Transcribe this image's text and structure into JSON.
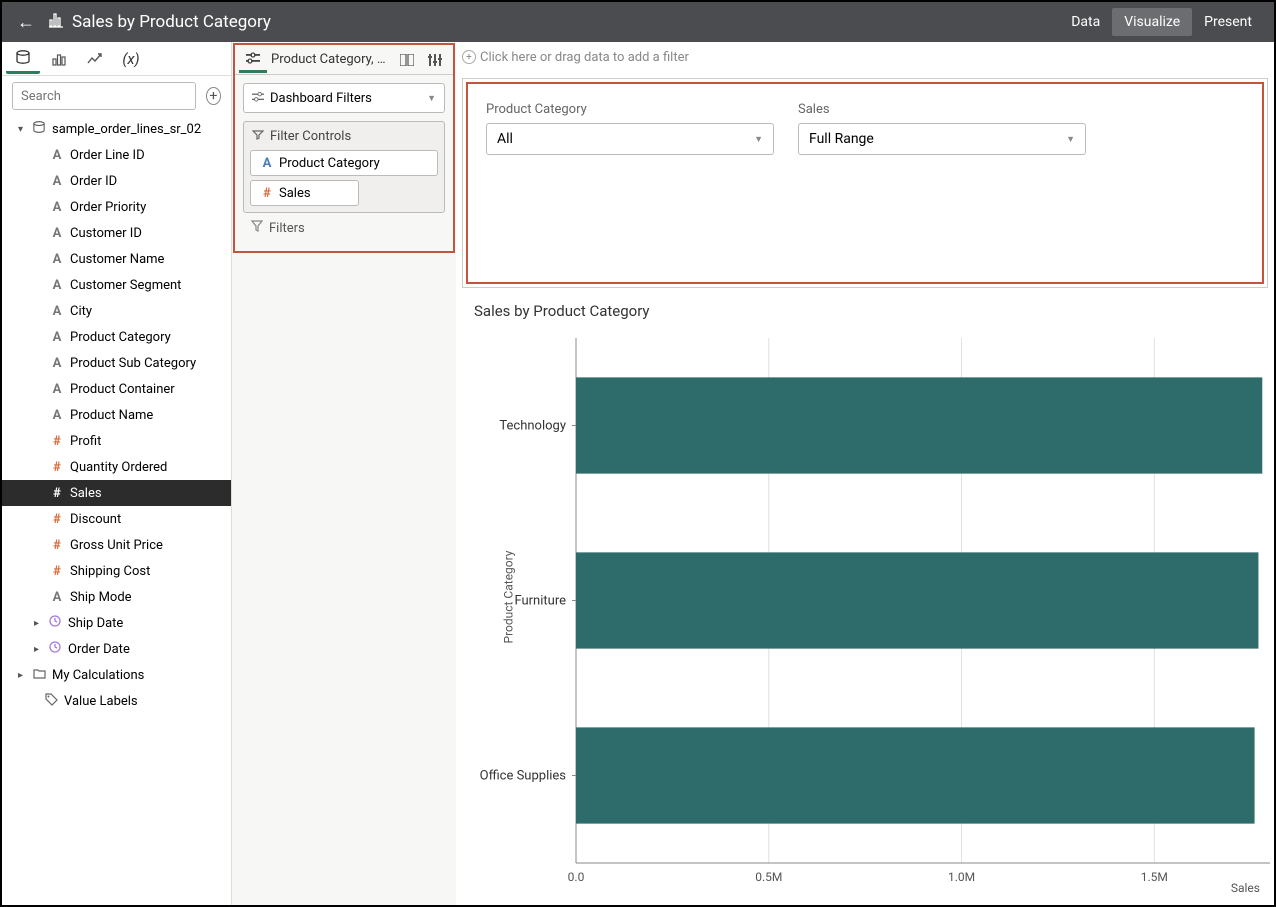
{
  "header": {
    "title": "Sales by Product Category",
    "nav": {
      "data": "Data",
      "visualize": "Visualize",
      "present": "Present",
      "active": "visualize"
    }
  },
  "sidebar": {
    "search_placeholder": "Search",
    "dataset": "sample_order_lines_sr_02",
    "fields": [
      {
        "label": "Order Line ID",
        "type": "text"
      },
      {
        "label": "Order ID",
        "type": "text"
      },
      {
        "label": "Order Priority",
        "type": "text"
      },
      {
        "label": "Customer ID",
        "type": "text"
      },
      {
        "label": "Customer Name",
        "type": "text"
      },
      {
        "label": "Customer Segment",
        "type": "text"
      },
      {
        "label": "City",
        "type": "text"
      },
      {
        "label": "Product Category",
        "type": "text"
      },
      {
        "label": "Product Sub Category",
        "type": "text"
      },
      {
        "label": "Product Container",
        "type": "text"
      },
      {
        "label": "Product Name",
        "type": "text"
      },
      {
        "label": "Profit",
        "type": "num"
      },
      {
        "label": "Quantity Ordered",
        "type": "num"
      },
      {
        "label": "Sales",
        "type": "num",
        "selected": true
      },
      {
        "label": "Discount",
        "type": "num"
      },
      {
        "label": "Gross Unit Price",
        "type": "num"
      },
      {
        "label": "Shipping Cost",
        "type": "num"
      },
      {
        "label": "Ship Mode",
        "type": "text"
      },
      {
        "label": "Ship Date",
        "type": "date",
        "expandable": true
      },
      {
        "label": "Order Date",
        "type": "date",
        "expandable": true
      }
    ],
    "calc_folder": "My Calculations",
    "value_labels": "Value Labels"
  },
  "mid": {
    "tab_label": "Product Category, S…",
    "dashboard_filters": "Dashboard Filters",
    "filter_controls_title": "Filter Controls",
    "chips": [
      {
        "label": "Product Category",
        "kind": "t"
      },
      {
        "label": "Sales",
        "kind": "n",
        "half": true
      }
    ],
    "filters_label": "Filters"
  },
  "canvas": {
    "filter_hint": "Click here or drag data to add a filter",
    "filters": {
      "product_category": {
        "label": "Product Category",
        "value": "All"
      },
      "sales": {
        "label": "Sales",
        "value": "Full Range"
      }
    },
    "chart": {
      "type": "bar-horizontal",
      "title": "Sales by Product Category",
      "y_axis_title": "Product Category",
      "x_axis_title": "Sales",
      "bar_color": "#2e6b6b",
      "grid_color": "#e0e0e0",
      "axis_color": "#888",
      "background_color": "#ffffff",
      "font_size_title": 15,
      "font_size_axis": 12,
      "xlim": [
        0,
        1800000
      ],
      "x_ticks": [
        {
          "v": 0,
          "label": "0.0"
        },
        {
          "v": 500000,
          "label": "0.5M"
        },
        {
          "v": 1000000,
          "label": "1.0M"
        },
        {
          "v": 1500000,
          "label": "1.5M"
        }
      ],
      "categories": [
        {
          "label": "Technology",
          "value": 1780000
        },
        {
          "label": "Furniture",
          "value": 1770000
        },
        {
          "label": "Office Supplies",
          "value": 1760000
        }
      ],
      "bar_height_ratio": 0.55
    }
  },
  "colors": {
    "highlight_border": "#c0563e",
    "accent": "#2e7d5a"
  }
}
